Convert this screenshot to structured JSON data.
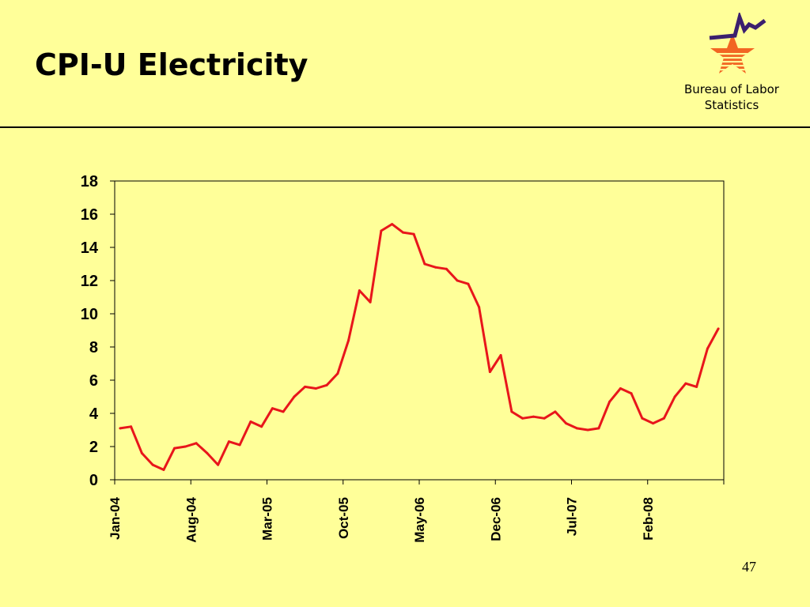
{
  "slide": {
    "title": "CPI-U Electricity",
    "org_name": "Bureau of Labor\nStatistics",
    "page_number": "47",
    "logo_icon": "bls-star-logo-icon",
    "colors": {
      "background": "#ffff99",
      "line": "#e8161b",
      "logo_star": "#f26522",
      "logo_stripes": "#ffff99",
      "logo_line": "#3b1f6e"
    }
  },
  "chart_data": {
    "type": "line",
    "title": "",
    "xlabel": "",
    "ylabel": "",
    "ylim": [
      0,
      18
    ],
    "yticks": [
      "0",
      "2",
      "4",
      "6",
      "8",
      "10",
      "12",
      "14",
      "16",
      "18"
    ],
    "x_tick_labels": [
      "Jan-04",
      "Aug-04",
      "Mar-05",
      "Oct-05",
      "May-06",
      "Dec-06",
      "Jul-07",
      "Feb-08"
    ],
    "x_tick_every_n_points": 7,
    "grid": false,
    "series": [
      {
        "values": [
          3.1,
          3.2,
          1.6,
          0.9,
          0.6,
          1.9,
          2.0,
          2.2,
          1.6,
          0.9,
          2.3,
          2.1,
          3.5,
          3.2,
          4.3,
          4.1,
          5.0,
          5.6,
          5.5,
          5.7,
          6.4,
          8.4,
          11.4,
          10.7,
          15.0,
          15.4,
          14.9,
          14.8,
          13.0,
          12.8,
          12.7,
          12.0,
          11.8,
          10.4,
          6.5,
          7.5,
          4.1,
          3.7,
          3.8,
          3.7,
          4.1,
          3.4,
          3.1,
          3.0,
          3.1,
          4.7,
          5.5,
          5.2,
          3.7,
          3.4,
          3.7,
          5.0,
          5.8,
          5.6,
          7.9,
          9.1
        ]
      }
    ]
  }
}
